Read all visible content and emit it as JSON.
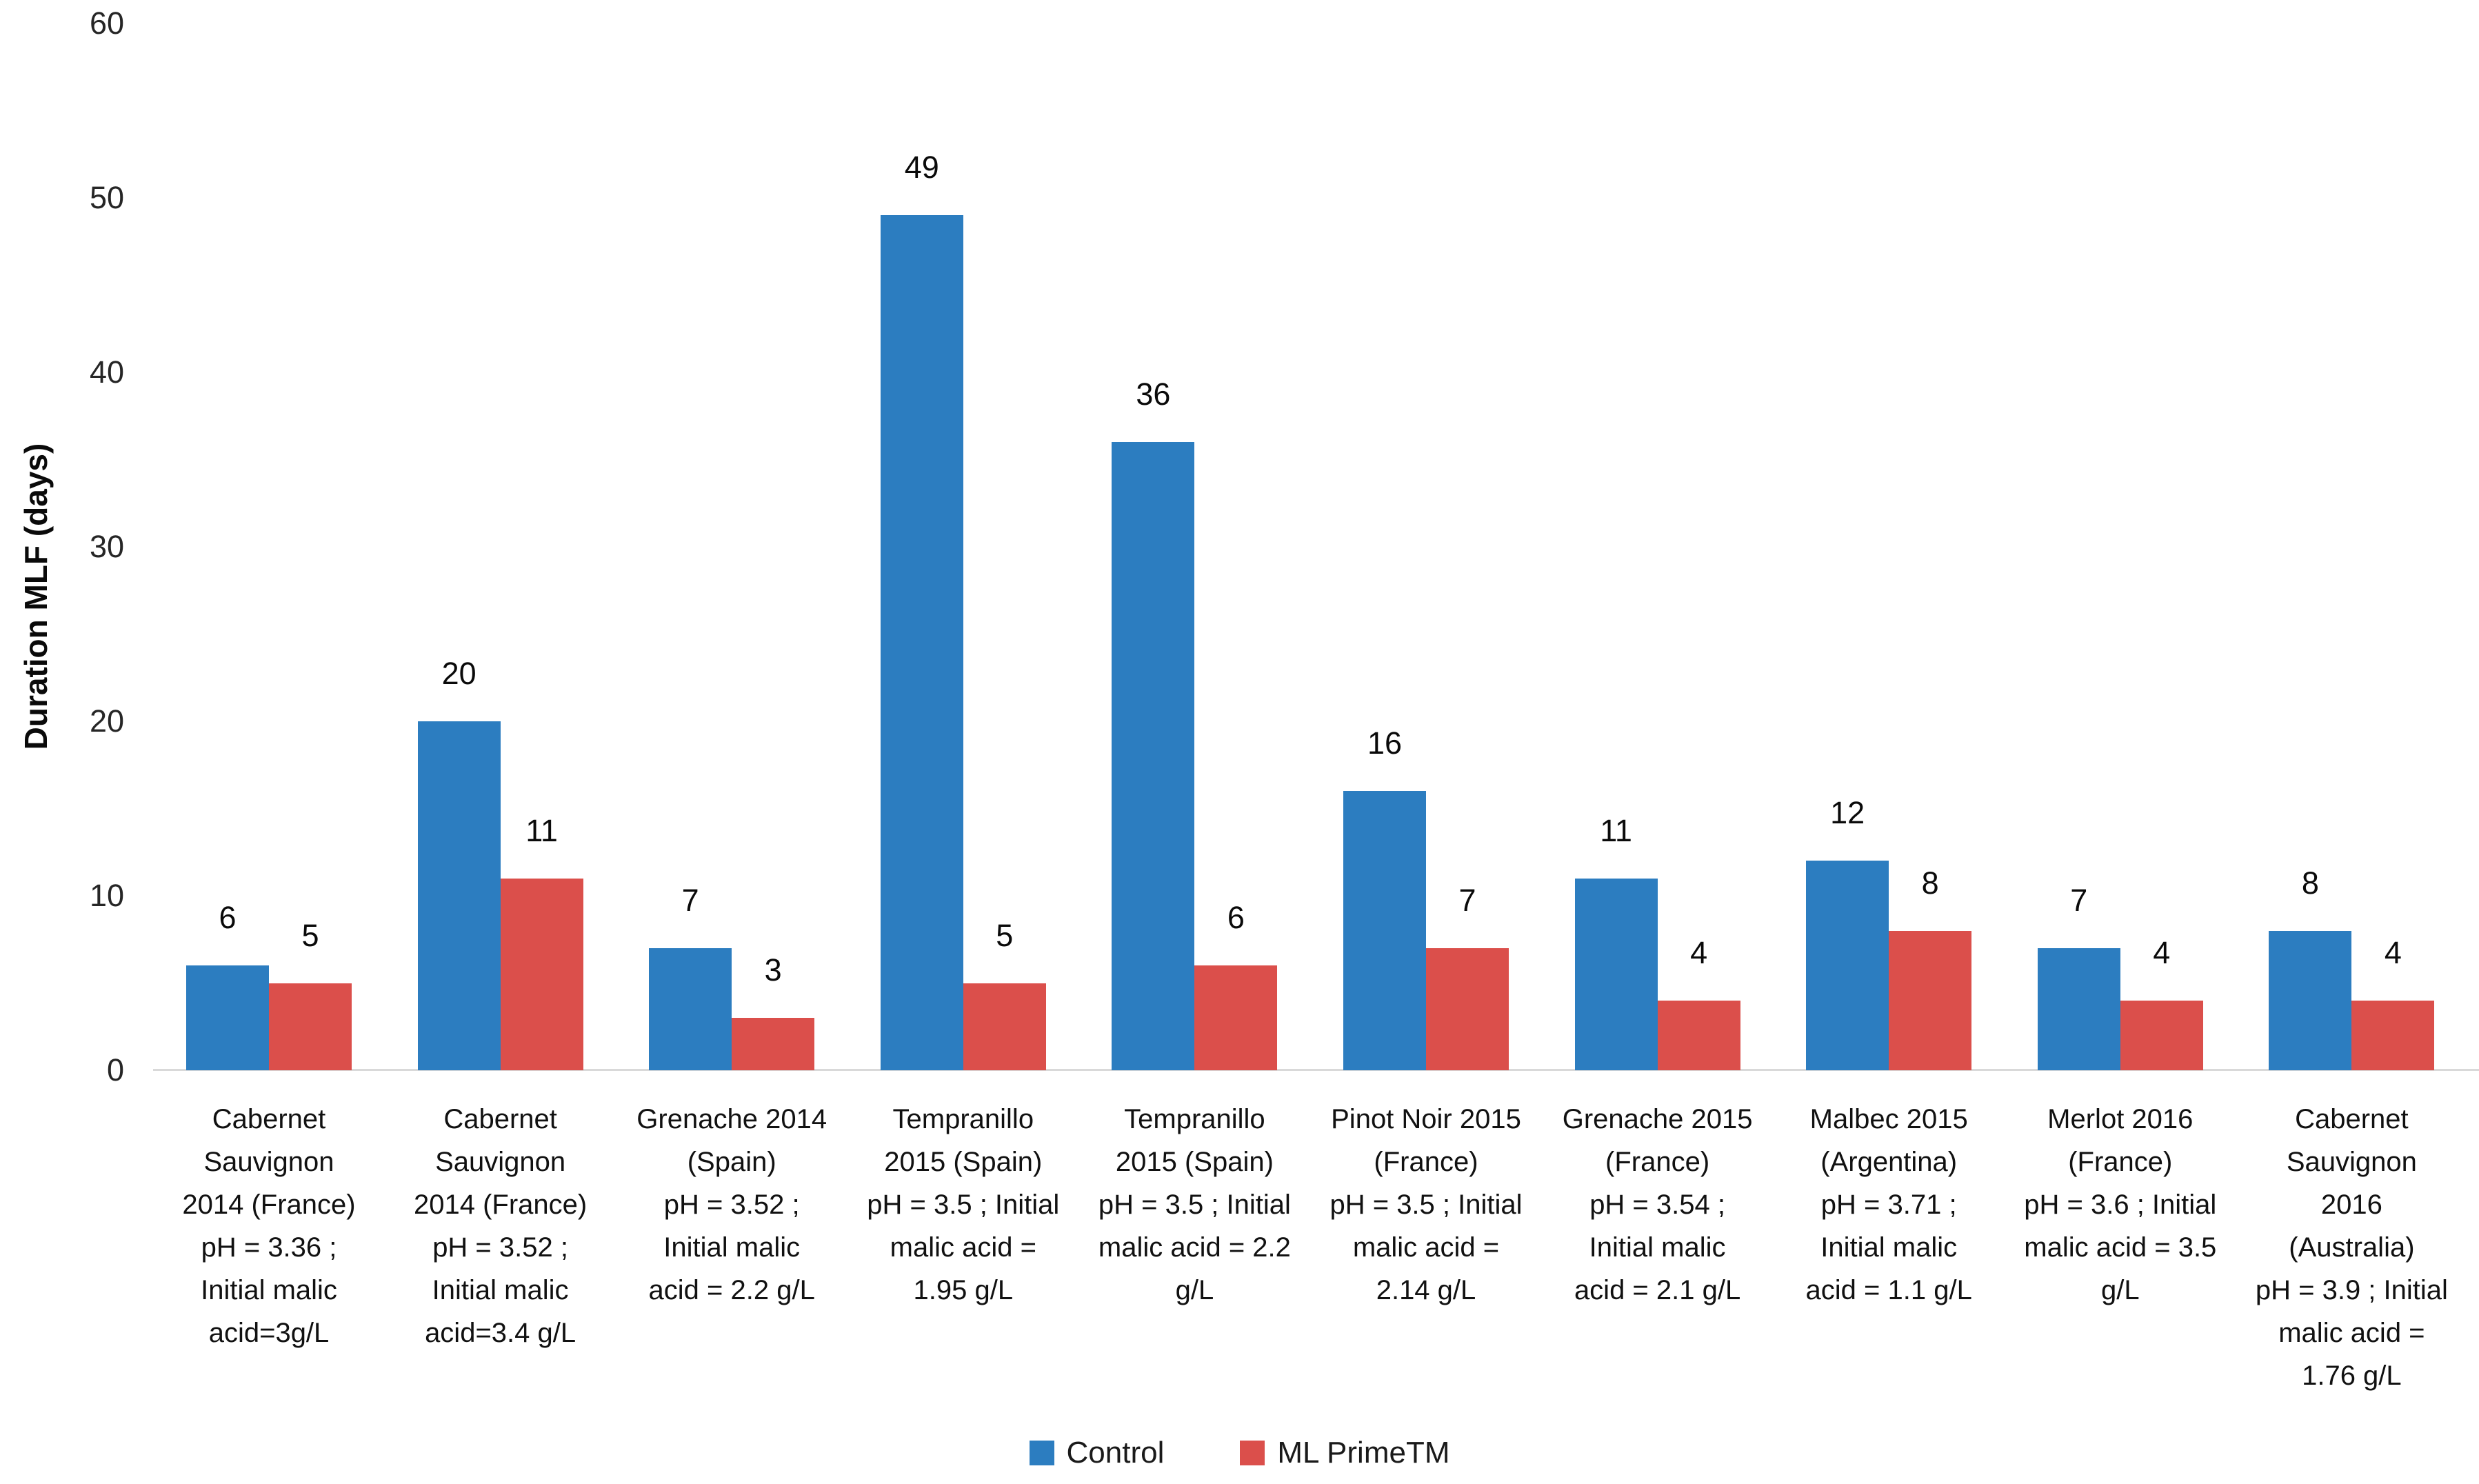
{
  "chart_data": {
    "type": "bar",
    "title": "",
    "xlabel": "",
    "ylabel": "Duration MLF (days)",
    "ylim": [
      0,
      60
    ],
    "yticks": [
      0,
      10,
      20,
      30,
      40,
      50,
      60
    ],
    "grid": false,
    "legend_position": "bottom",
    "categories": [
      "Cabernet\nSauvignon\n2014 (France)\npH = 3.36 ;\nInitial malic\nacid=3g/L",
      "Cabernet\nSauvignon\n2014 (France)\npH = 3.52 ;\nInitial malic\nacid=3.4 g/L",
      "Grenache 2014\n(Spain)\npH = 3.52 ;\nInitial malic\nacid = 2.2 g/L",
      "Tempranillo\n2015 (Spain)\npH = 3.5 ; Initial\nmalic acid =\n1.95 g/L",
      "Tempranillo\n2015 (Spain)\npH = 3.5 ; Initial\nmalic acid = 2.2\ng/L",
      "Pinot Noir 2015\n(France)\npH = 3.5 ; Initial\nmalic acid =\n2.14 g/L",
      "Grenache 2015\n(France)\npH = 3.54 ;\nInitial malic\nacid = 2.1 g/L",
      "Malbec 2015\n(Argentina)\npH = 3.71 ;\nInitial malic\nacid = 1.1 g/L",
      "Merlot 2016\n(France)\npH = 3.6 ; Initial\nmalic acid = 3.5\ng/L",
      "Cabernet\nSauvignon\n2016\n(Australia)\npH = 3.9 ; Initial\nmalic acid =\n1.76 g/L"
    ],
    "series": [
      {
        "name": "Control",
        "color": "#2c7dc0",
        "values": [
          6,
          20,
          7,
          49,
          36,
          16,
          11,
          12,
          7,
          8
        ]
      },
      {
        "name": "ML PrimeTM",
        "color": "#db4f4b",
        "values": [
          5,
          11,
          3,
          5,
          6,
          7,
          4,
          8,
          4,
          4
        ]
      }
    ],
    "colors": {
      "axis_line": "#d9d9d9",
      "text": "#0a0a0a"
    }
  }
}
